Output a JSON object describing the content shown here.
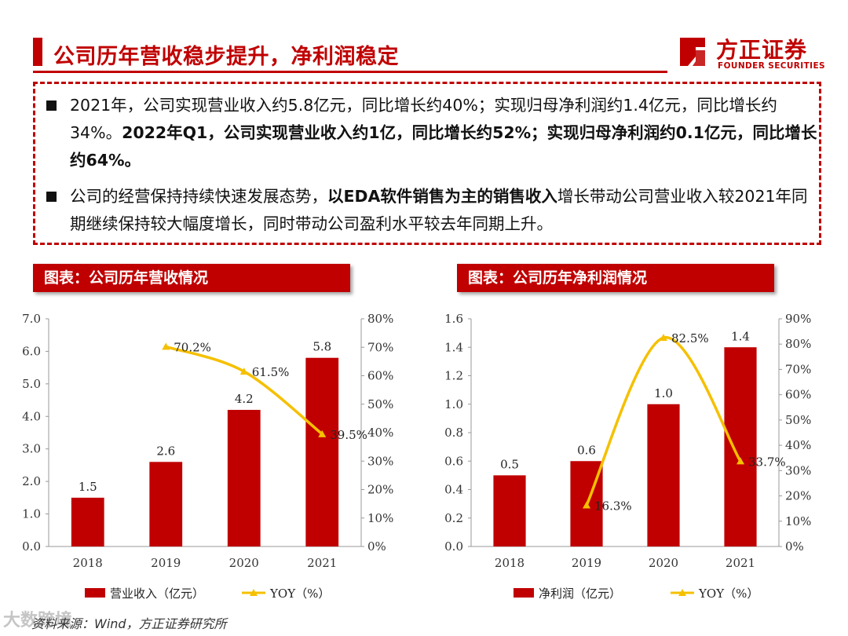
{
  "page": {
    "title": "公司历年营收稳步提升，净利润稳定"
  },
  "logo": {
    "name_cn": "方正证券",
    "name_en": "FOUNDER SECURITIES"
  },
  "summary": {
    "bullet1_normal": "2021年，公司实现营业收入约5.8亿元，同比增长约40%；实现归母净利润约1.4亿元，同比增长约34%。",
    "bullet1_bold": "2022年Q1，公司实现营业收入约1亿，同比增长约52%；实现归母净利润约0.1亿元，同比增长约64%。",
    "bullet2_normal_a": "公司的经营保持持续快速发展态势，",
    "bullet2_bold": "以EDA软件销售为主的销售收入",
    "bullet2_normal_b": "增长带动公司营业收入较2021年同期继续保持较大幅度增长，同时带动公司盈利水平较去年同期上升。"
  },
  "charts": {
    "left_header": "图表：公司历年营收情况",
    "right_header": "图表：公司历年净利润情况"
  },
  "source": {
    "text": "资料来源：Wind，方正证券研究所",
    "watermark": "大数跨境"
  },
  "colors": {
    "brand_red": "#c00000",
    "line_yellow": "#f5c000"
  },
  "chart_data": [
    {
      "type": "bar",
      "title": "公司历年营收情况",
      "categories": [
        "2018",
        "2019",
        "2020",
        "2021"
      ],
      "series": [
        {
          "name": "营业收入（亿元）",
          "axis": "left",
          "values": [
            1.5,
            2.6,
            4.2,
            5.8
          ],
          "labels": [
            "1.5",
            "2.6",
            "4.2",
            "5.8"
          ]
        },
        {
          "name": "YOY（%）",
          "axis": "right",
          "type": "line",
          "values": [
            null,
            70.2,
            61.5,
            39.5
          ],
          "labels": [
            "",
            "70.2%",
            "61.5%",
            "39.5%"
          ]
        }
      ],
      "ylim": [
        0,
        7
      ],
      "yticks": [
        "0.0",
        "1.0",
        "2.0",
        "3.0",
        "4.0",
        "5.0",
        "6.0",
        "7.0"
      ],
      "y2lim": [
        0,
        80
      ],
      "y2ticks": [
        "0%",
        "10%",
        "20%",
        "30%",
        "40%",
        "50%",
        "60%",
        "70%",
        "80%"
      ],
      "legend": [
        "营业收入（亿元）",
        "YOY（%）"
      ]
    },
    {
      "type": "bar",
      "title": "公司历年净利润情况",
      "categories": [
        "2018",
        "2019",
        "2020",
        "2021"
      ],
      "series": [
        {
          "name": "净利润（亿元）",
          "axis": "left",
          "values": [
            0.5,
            0.6,
            1.0,
            1.4
          ],
          "labels": [
            "0.5",
            "0.6",
            "1.0",
            "1.4"
          ]
        },
        {
          "name": "YOY（%）",
          "axis": "right",
          "type": "line",
          "values": [
            null,
            16.3,
            82.5,
            33.7
          ],
          "labels": [
            "",
            "16.3%",
            "82.5%",
            "33.7%"
          ]
        }
      ],
      "ylim": [
        0,
        1.6
      ],
      "yticks": [
        "0.0",
        "0.2",
        "0.4",
        "0.6",
        "0.8",
        "1.0",
        "1.2",
        "1.4",
        "1.6"
      ],
      "y2lim": [
        0,
        90
      ],
      "y2ticks": [
        "0%",
        "10%",
        "20%",
        "30%",
        "40%",
        "50%",
        "60%",
        "70%",
        "80%",
        "90%"
      ],
      "legend": [
        "净利润（亿元）",
        "YOY（%）"
      ]
    }
  ]
}
